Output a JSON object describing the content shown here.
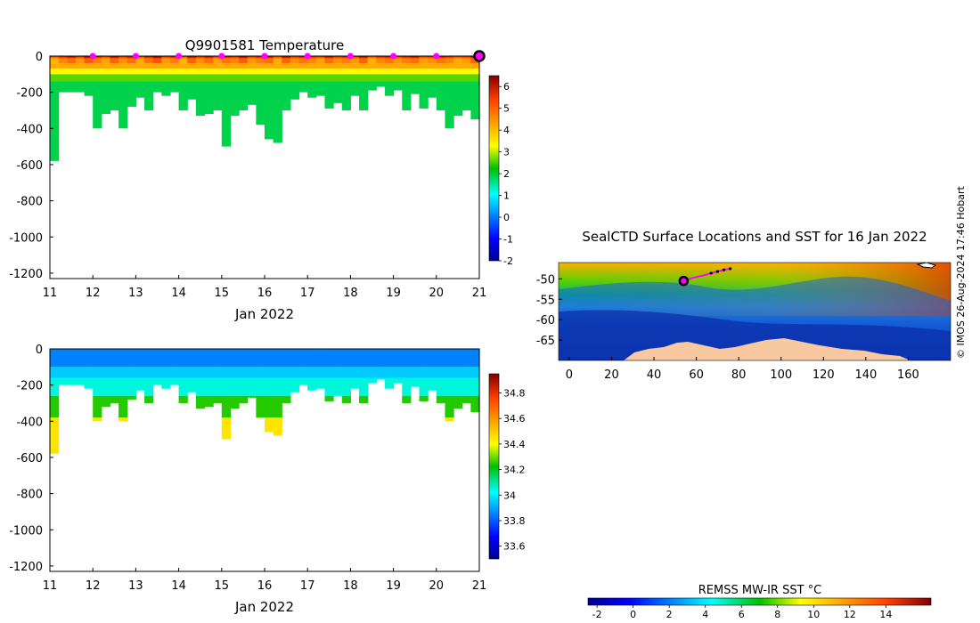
{
  "chart_data": [
    {
      "type": "heatmap",
      "title": "Q9901581  Temperature",
      "xlabel": "Jan 2022",
      "xlim": [
        11,
        21
      ],
      "ylim": [
        -1230,
        0
      ],
      "xticks": [
        11,
        12,
        13,
        14,
        15,
        16,
        17,
        18,
        19,
        20,
        21
      ],
      "yticks": [
        0,
        -200,
        -400,
        -600,
        -800,
        -1000,
        -1200
      ],
      "colorbar": {
        "min": -2,
        "max": 6.5,
        "ticks": [
          6,
          5,
          4,
          3,
          2,
          1,
          0,
          -1,
          -2
        ],
        "colormap": "jet"
      },
      "profiles": {
        "day": [
          11.2,
          11.4,
          11.6,
          11.8,
          12.0,
          12.2,
          12.4,
          12.6,
          12.8,
          13.0,
          13.2,
          13.4,
          13.6,
          13.8,
          14.0,
          14.2,
          14.4,
          14.6,
          14.8,
          15.0,
          15.2,
          15.4,
          15.6,
          15.8,
          16.0,
          16.2,
          16.4,
          16.6,
          16.8,
          17.0,
          17.2,
          17.4,
          17.6,
          17.8,
          18.0,
          18.2,
          18.4,
          18.6,
          18.8,
          19.0,
          19.2,
          19.4,
          19.6,
          19.8,
          20.0,
          20.2,
          20.4,
          20.6,
          20.8,
          21.0
        ],
        "max_depth": [
          -580,
          -200,
          -200,
          -200,
          -220,
          -400,
          -320,
          -300,
          -400,
          -280,
          -230,
          -300,
          -200,
          -220,
          -200,
          -300,
          -240,
          -330,
          -320,
          -300,
          -500,
          -330,
          -300,
          -270,
          -380,
          -460,
          -480,
          -300,
          -240,
          -200,
          -230,
          -220,
          -290,
          -260,
          -300,
          -220,
          -300,
          -190,
          -170,
          -220,
          -190,
          -300,
          -210,
          -290,
          -230,
          -300,
          -400,
          -330,
          -300,
          -350
        ],
        "surface_temp": [
          5.0,
          5.5,
          5.8,
          5.3,
          6.0,
          5.6,
          5.2,
          5.9,
          5.4,
          5.8,
          5.1,
          5.7,
          6.1,
          5.3,
          5.6,
          5.0,
          5.9,
          5.4,
          5.8,
          5.2,
          5.7,
          5.5,
          6.0,
          5.3,
          5.6,
          5.8,
          5.1,
          5.9,
          5.4,
          5.7,
          5.5,
          5.2,
          5.8,
          5.4,
          5.6,
          5.3,
          5.9,
          5.0,
          5.5,
          5.7,
          5.3,
          5.6,
          5.8,
          5.2,
          5.4,
          5.7,
          5.5,
          5.1,
          5.3,
          5.9
        ],
        "deep_temp": 1.9,
        "mid_temp": 2.6
      },
      "surface_markers": [
        12,
        13,
        14,
        15,
        16,
        17,
        18,
        19,
        20
      ],
      "current_position_day": 21
    },
    {
      "type": "heatmap",
      "title": "",
      "xlabel": "Jan 2022",
      "xlim": [
        11,
        21
      ],
      "ylim": [
        -1230,
        0
      ],
      "xticks": [
        11,
        12,
        13,
        14,
        15,
        16,
        17,
        18,
        19,
        20,
        21
      ],
      "yticks": [
        0,
        -200,
        -400,
        -600,
        -800,
        -1000,
        -1200
      ],
      "colorbar": {
        "min": 33.5,
        "max": 34.95,
        "ticks": [
          34.8,
          34.6,
          34.4,
          34.2,
          34,
          33.8,
          33.6
        ],
        "colormap": "jet"
      },
      "profiles": {
        "surface_sal": 33.85,
        "mid_sal": 34.05,
        "deep_sal": 34.45
      }
    },
    {
      "type": "heatmap",
      "title": "SealCTD Surface Locations and SST for 16 Jan 2022",
      "xlim": [
        -5,
        180
      ],
      "ylim": [
        -70,
        -46
      ],
      "xticks": [
        0,
        20,
        40,
        60,
        80,
        100,
        120,
        140,
        160
      ],
      "yticks": [
        -50,
        -55,
        -60,
        -65
      ],
      "track": {
        "lon": [
          54,
          58,
          63,
          67,
          70,
          73,
          76
        ],
        "lat": [
          -50.5,
          -49.8,
          -49.2,
          -48.6,
          -48.2,
          -47.8,
          -47.5
        ]
      },
      "current_position": {
        "lon": 54,
        "lat": -50.5
      },
      "colorbar": {
        "label": "REMSS MW-IR SST °C",
        "min": -2.5,
        "max": 16.5,
        "ticks": [
          -2,
          0,
          2,
          4,
          6,
          8,
          10,
          12,
          14
        ],
        "colormap": "jet"
      }
    }
  ],
  "stamp": "© IMOS 26-Aug-2024 17:46 Hobart"
}
